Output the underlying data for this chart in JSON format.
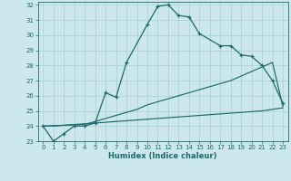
{
  "xlabel": "Humidex (Indice chaleur)",
  "background_color": "#cce8ec",
  "grid_color": "#a8d0d4",
  "line_color": "#1a6b6b",
  "xlim": [
    -0.5,
    23.5
  ],
  "ylim": [
    23,
    32.2
  ],
  "yticks": [
    23,
    24,
    25,
    26,
    27,
    28,
    29,
    30,
    31,
    32
  ],
  "xticks": [
    0,
    1,
    2,
    3,
    4,
    5,
    6,
    7,
    8,
    9,
    10,
    11,
    12,
    13,
    14,
    15,
    16,
    17,
    18,
    19,
    20,
    21,
    22,
    23
  ],
  "curve1_x": [
    0,
    1,
    2,
    3,
    4,
    5,
    6,
    7,
    8,
    10,
    11,
    12,
    13,
    14,
    15,
    17,
    18,
    19,
    20,
    21,
    22,
    23
  ],
  "curve1_y": [
    24.0,
    23.0,
    23.5,
    24.0,
    24.0,
    24.2,
    26.2,
    25.9,
    28.2,
    30.7,
    31.9,
    32.0,
    31.3,
    31.2,
    30.1,
    29.3,
    29.3,
    28.7,
    28.6,
    28.0,
    27.0,
    25.5
  ],
  "curve2_x": [
    0,
    4,
    5,
    6,
    7,
    8,
    9,
    10,
    11,
    12,
    13,
    14,
    15,
    16,
    17,
    18,
    19,
    20,
    21,
    22,
    23
  ],
  "curve2_y": [
    24.0,
    24.1,
    24.3,
    24.5,
    24.7,
    24.9,
    25.1,
    25.4,
    25.6,
    25.8,
    26.0,
    26.2,
    26.4,
    26.6,
    26.8,
    27.0,
    27.3,
    27.6,
    27.9,
    28.2,
    25.3
  ],
  "curve3_x": [
    0,
    1,
    2,
    3,
    4,
    5,
    6,
    7,
    8,
    9,
    10,
    11,
    12,
    13,
    14,
    15,
    16,
    17,
    18,
    19,
    20,
    21,
    22,
    23
  ],
  "curve3_y": [
    24.0,
    24.0,
    24.05,
    24.1,
    24.15,
    24.2,
    24.25,
    24.3,
    24.35,
    24.4,
    24.45,
    24.5,
    24.55,
    24.6,
    24.65,
    24.7,
    24.75,
    24.8,
    24.85,
    24.9,
    24.95,
    25.0,
    25.1,
    25.2
  ]
}
